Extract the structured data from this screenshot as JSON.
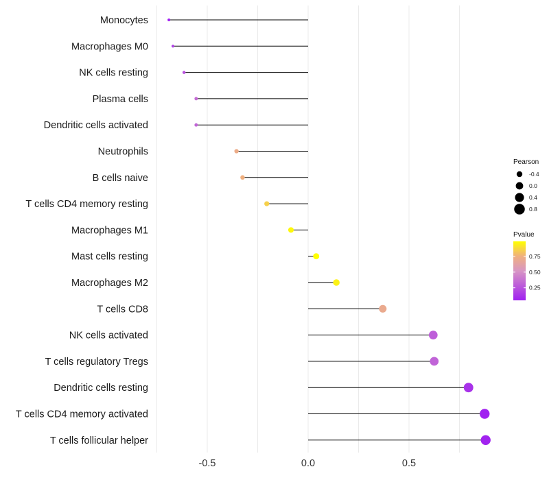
{
  "chart_data": {
    "type": "lollipop",
    "title": "",
    "xlabel": "",
    "ylabel": "",
    "xlim": [
      -0.75,
      0.9
    ],
    "x_ticks": [
      -0.5,
      0.0,
      0.5
    ],
    "x_tick_labels": [
      "-0.5",
      "0.0",
      "0.5"
    ],
    "grid": true,
    "categories": [
      "Monocytes",
      "Macrophages M0",
      "NK cells resting",
      "Plasma cells",
      "Dendritic cells activated",
      "Neutrophils",
      "B cells naive",
      "T cells CD4 memory resting",
      "Macrophages M1",
      "Mast cells resting",
      "Macrophages M2",
      "T cells CD8",
      "NK cells activated",
      "T cells regulatory  Tregs ",
      "Dendritic cells resting",
      "T cells CD4 memory activated",
      "T cells follicular helper"
    ],
    "values": [
      -0.69,
      -0.67,
      -0.615,
      -0.555,
      -0.555,
      -0.355,
      -0.325,
      -0.205,
      -0.085,
      0.04,
      0.14,
      0.37,
      0.62,
      0.625,
      0.795,
      0.875,
      0.88
    ],
    "pvalues": [
      0.05,
      0.18,
      0.25,
      0.35,
      0.33,
      0.72,
      0.75,
      0.85,
      0.97,
      0.99,
      0.95,
      0.7,
      0.3,
      0.32,
      0.12,
      0.05,
      0.06
    ],
    "size_legend": {
      "title": "Pearson",
      "labels": [
        "-0.4",
        "0.0",
        "0.4",
        "0.8"
      ],
      "values": [
        -0.4,
        0.0,
        0.4,
        0.8
      ]
    },
    "color_legend": {
      "title": "Pvalue",
      "labels": [
        "0.75",
        "0.50",
        "0.25"
      ],
      "values": [
        0.75,
        0.5,
        0.25
      ],
      "range": [
        0.05,
        0.99
      ],
      "low_color": "#a020f0",
      "high_color": "#ffff00"
    },
    "colors": {
      "stem": "#000000",
      "grid": "#ebebeb"
    }
  }
}
